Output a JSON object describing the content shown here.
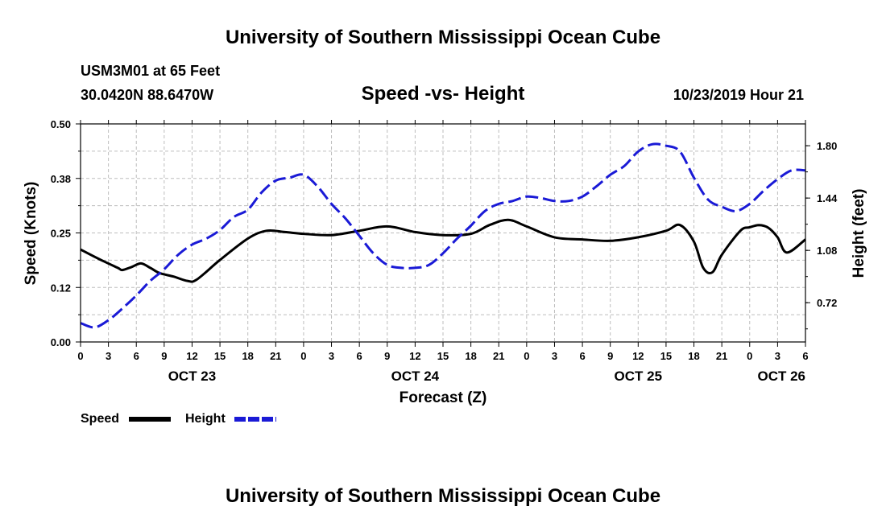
{
  "header": {
    "title_top": "University of Southern Mississippi Ocean Cube",
    "station_line": "USM3M01 at 65 Feet",
    "coords_line": "30.0420N 88.6470W",
    "timestamp": "10/23/2019 Hour 21"
  },
  "footer": {
    "title_bottom": "University of Southern Mississippi Ocean Cube"
  },
  "colors": {
    "speed": "#000000",
    "height": "#1a1ad6",
    "grid": "#bdbdbd"
  },
  "chart_data": {
    "type": "line",
    "title": "Speed -vs- Height",
    "xlabel": "Forecast (Z)",
    "ylabel": "Speed (Knots)",
    "y2label": "Height (feet)",
    "grid": true,
    "xlim": [
      0,
      78
    ],
    "ylim": [
      0,
      0.5
    ],
    "y2lim": [
      0.45,
      1.95
    ],
    "x_ticks": [
      0,
      3,
      6,
      9,
      12,
      15,
      18,
      21,
      24,
      27,
      30,
      33,
      36,
      39,
      42,
      45,
      48,
      51,
      54,
      57,
      60,
      63,
      66,
      69,
      72,
      75,
      78
    ],
    "x_tick_labels": [
      "0",
      "3",
      "6",
      "9",
      "12",
      "15",
      "18",
      "21",
      "0",
      "3",
      "6",
      "9",
      "12",
      "15",
      "18",
      "21",
      "0",
      "3",
      "6",
      "9",
      "12",
      "15",
      "18",
      "21",
      "0",
      "3",
      "6"
    ],
    "y_ticks": [
      0,
      0.125,
      0.25,
      0.375,
      0.5
    ],
    "y_tick_labels": [
      "0.00",
      "0.12",
      "0.25",
      "0.38",
      "0.50"
    ],
    "y2_ticks": [
      0.72,
      1.08,
      1.44,
      1.8
    ],
    "y2_tick_labels": [
      "0.72",
      "1.08",
      "1.44",
      "1.80"
    ],
    "date_labels": [
      {
        "x": 12,
        "label": "OCT 23"
      },
      {
        "x": 36,
        "label": "OCT 24"
      },
      {
        "x": 60,
        "label": "OCT 25"
      },
      {
        "x": 78,
        "label": "OCT 26"
      }
    ],
    "series": [
      {
        "name": "Speed",
        "axis": "left",
        "style": "solid",
        "x": [
          0,
          2,
          4,
          4.5,
          5.5,
          6.5,
          7.5,
          8.5,
          10,
          11.5,
          12.5,
          15,
          18,
          20,
          22,
          24,
          27,
          30,
          33,
          36,
          39,
          42,
          44,
          46,
          48,
          51,
          54,
          57,
          60,
          63,
          64.5,
          66,
          67,
          68,
          69,
          71,
          72,
          73,
          74,
          75,
          76,
          78
        ],
        "values": [
          0.212,
          0.19,
          0.17,
          0.165,
          0.172,
          0.18,
          0.17,
          0.158,
          0.15,
          0.14,
          0.143,
          0.188,
          0.237,
          0.255,
          0.252,
          0.248,
          0.245,
          0.255,
          0.265,
          0.252,
          0.245,
          0.248,
          0.268,
          0.28,
          0.265,
          0.24,
          0.235,
          0.232,
          0.24,
          0.255,
          0.268,
          0.23,
          0.17,
          0.16,
          0.2,
          0.255,
          0.263,
          0.268,
          0.262,
          0.24,
          0.205,
          0.235
        ]
      },
      {
        "name": "Height",
        "axis": "right",
        "style": "dashed",
        "x": [
          0,
          1.5,
          3,
          4.5,
          6,
          7.5,
          9,
          10.5,
          12,
          13.5,
          15,
          16.5,
          18,
          19.5,
          21,
          22.5,
          24,
          25.5,
          27,
          28.5,
          30,
          31.5,
          33,
          34.5,
          36,
          37.5,
          39,
          40.5,
          42,
          43.5,
          45,
          46.5,
          48,
          49.5,
          51,
          52.5,
          54,
          55.5,
          57,
          58.5,
          60,
          61.5,
          63,
          64.5,
          66,
          67.5,
          69,
          70.5,
          72,
          73.5,
          75,
          76.5,
          78
        ],
        "values": [
          0.58,
          0.55,
          0.6,
          0.68,
          0.77,
          0.87,
          0.95,
          1.05,
          1.12,
          1.16,
          1.22,
          1.31,
          1.36,
          1.48,
          1.56,
          1.58,
          1.6,
          1.52,
          1.4,
          1.3,
          1.18,
          1.06,
          0.98,
          0.96,
          0.96,
          0.98,
          1.06,
          1.16,
          1.25,
          1.35,
          1.4,
          1.42,
          1.45,
          1.44,
          1.42,
          1.42,
          1.45,
          1.52,
          1.6,
          1.66,
          1.76,
          1.81,
          1.8,
          1.76,
          1.58,
          1.43,
          1.38,
          1.35,
          1.4,
          1.49,
          1.57,
          1.63,
          1.63
        ]
      }
    ]
  }
}
